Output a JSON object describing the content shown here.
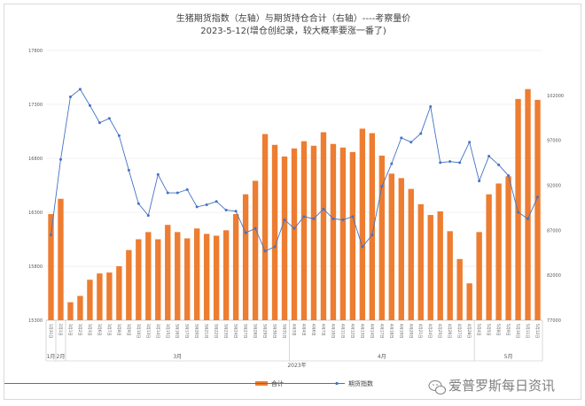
{
  "chart_data": {
    "type": "bar+line",
    "title": "生猪期货指数（左轴）与期货持仓合计（右轴）----考察量价",
    "subtitle": "2023-5-12(增仓创纪录，较大概率要涨一番了)",
    "categories": [
      "1月31日",
      "2月1日",
      "3月1日",
      "3月2日",
      "3月3日",
      "3月6日",
      "3月7日",
      "3月8日",
      "3月9日",
      "3月10日",
      "3月13日",
      "3月14日",
      "3月15日",
      "3月16日",
      "3月17日",
      "3月20日",
      "3月21日",
      "3月22日",
      "3月23日",
      "3月24日",
      "3月27日",
      "3月28日",
      "3月29日",
      "3月30日",
      "3月31日",
      "4月3日",
      "4月4日",
      "4月6日",
      "4月7日",
      "4月10日",
      "4月11日",
      "4月12日",
      "4月13日",
      "4月14日",
      "4月17日",
      "4月18日",
      "4月19日",
      "4月20日",
      "4月21日",
      "4月24日",
      "4月25日",
      "4月26日",
      "4月27日",
      "4月28日",
      "5月4日",
      "5月5日",
      "5月8日",
      "5月9日",
      "5月10日",
      "5月11日",
      "5月12日"
    ],
    "left_axis": {
      "min": 15300,
      "max": 17800,
      "ticks": [
        "15300",
        "15800",
        "16300",
        "16800",
        "17300",
        "17800"
      ]
    },
    "right_axis": {
      "min": 77000,
      "max": 107000,
      "ticks": [
        "77000",
        "82000",
        "87000",
        "92000",
        "97000",
        "102000"
      ]
    },
    "series": [
      {
        "name": "合计",
        "kind": "bar",
        "axis": "right",
        "color": "#ed7d31",
        "values": [
          88800,
          90500,
          79000,
          79700,
          81500,
          82200,
          82300,
          83000,
          84800,
          86000,
          86800,
          86000,
          87600,
          86800,
          86100,
          87200,
          86600,
          86400,
          87000,
          88800,
          91000,
          92500,
          97700,
          96500,
          95200,
          96100,
          96900,
          96400,
          97900,
          96600,
          96200,
          95700,
          98300,
          97800,
          95300,
          93300,
          92800,
          91600,
          89900,
          88700,
          89100,
          86900,
          83800,
          81100,
          86800,
          91000,
          92200,
          93000,
          101600,
          102700,
          101500
        ]
      },
      {
        "name": "期货指数",
        "kind": "line",
        "axis": "left",
        "color": "#4472c4",
        "values": [
          16090,
          16790,
          17370,
          17440,
          17290,
          17130,
          17170,
          17010,
          16690,
          16380,
          16270,
          16650,
          16480,
          16480,
          16510,
          16350,
          16370,
          16400,
          16320,
          16310,
          16110,
          16150,
          15940,
          15980,
          16230,
          16150,
          16260,
          16240,
          16330,
          16240,
          16230,
          16260,
          15980,
          16090,
          16540,
          16750,
          16990,
          16950,
          17030,
          17280,
          16760,
          16770,
          16760,
          16950,
          16590,
          16820,
          16740,
          16640,
          16300,
          16240,
          16440
        ]
      }
    ],
    "x_groups": [
      {
        "label": "1月",
        "count": 1
      },
      {
        "label": "2月",
        "count": 1
      },
      {
        "label": "3月",
        "count": 23
      },
      {
        "label": "4月",
        "count": 19
      },
      {
        "label": "5月",
        "count": 7
      }
    ],
    "x_year": "2023年",
    "grid": true,
    "legend_position": "bottom"
  },
  "watermark": "爱普罗斯每日资讯"
}
